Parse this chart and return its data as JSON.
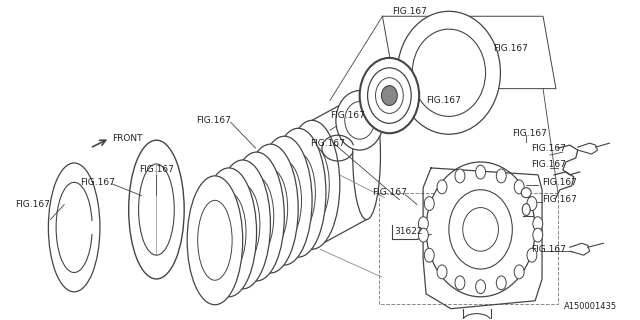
{
  "background_color": "#ffffff",
  "line_color": "#444444",
  "text_color": "#222222",
  "part_number": "A150001435",
  "font_size": 6.5,
  "fig_label": "FIG.167",
  "part_31622": "31622",
  "front_text": "FRONT"
}
